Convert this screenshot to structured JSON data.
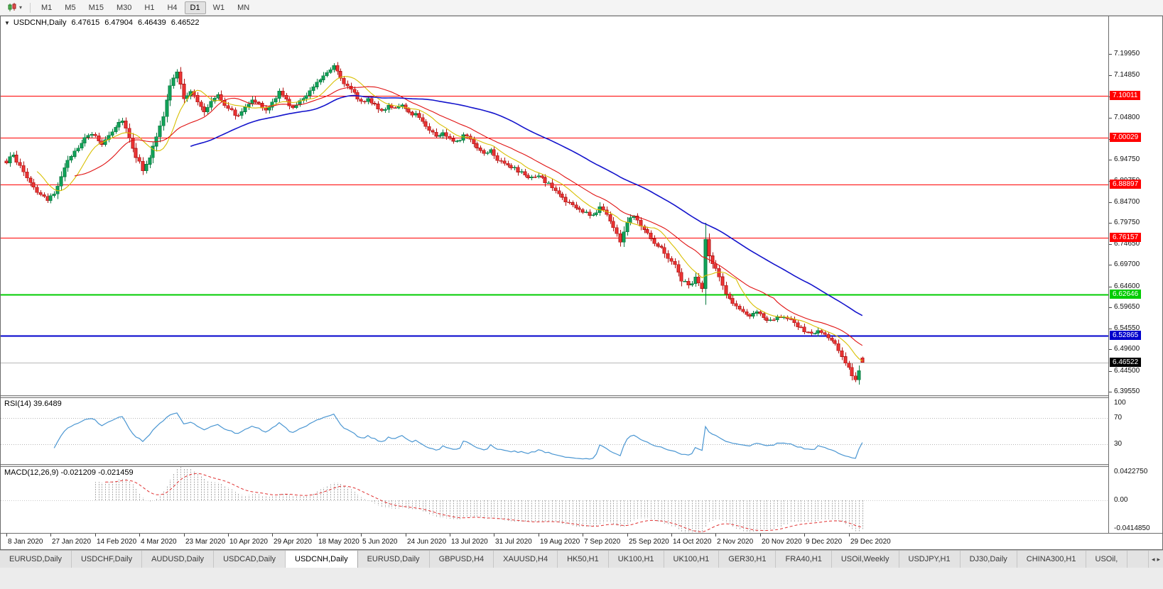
{
  "icons": {
    "collapse": "▼",
    "caret": "▾",
    "scroll_left": "◂",
    "scroll_right": "▸"
  },
  "toolbar": {
    "timeframes": [
      "M1",
      "M5",
      "M15",
      "M30",
      "H1",
      "H4",
      "D1",
      "W1",
      "MN"
    ],
    "active_timeframe": "D1"
  },
  "chart": {
    "symbol_period": "USDCNH,Daily",
    "open": "6.47615",
    "high": "6.47904",
    "low": "6.46439",
    "close": "6.46522"
  },
  "panels": {
    "rsi_label": "RSI(14) 39.6489",
    "macd_label": "MACD(12,26,9) -0.021209 -0.021459"
  },
  "tabs": {
    "items": [
      {
        "label": "EURUSD,Daily",
        "active": false
      },
      {
        "label": "USDCHF,Daily",
        "active": false
      },
      {
        "label": "AUDUSD,Daily",
        "active": false
      },
      {
        "label": "USDCAD,Daily",
        "active": false
      },
      {
        "label": "USDCNH,Daily",
        "active": true
      },
      {
        "label": "EURUSD,Daily",
        "active": false
      },
      {
        "label": "GBPUSD,H4",
        "active": false
      },
      {
        "label": "XAUUSD,H4",
        "active": false
      },
      {
        "label": "HK50,H1",
        "active": false
      },
      {
        "label": "UK100,H1",
        "active": false
      },
      {
        "label": "UK100,H1",
        "active": false
      },
      {
        "label": "GER30,H1",
        "active": false
      },
      {
        "label": "FRA40,H1",
        "active": false
      },
      {
        "label": "USOil,Weekly",
        "active": false
      },
      {
        "label": "USDJPY,H1",
        "active": false
      },
      {
        "label": "DJ30,Daily",
        "active": false
      },
      {
        "label": "CHINA300,H1",
        "active": false
      },
      {
        "label": "USOil,",
        "active": false
      }
    ]
  },
  "chart_data": {
    "type": "candlestick",
    "symbol": "USDCNH",
    "timeframe": "Daily",
    "title": "USDCNH,Daily 6.47615 6.47904 6.46439 6.46522",
    "last_ohlc": [
      6.47615,
      6.47904,
      6.46439,
      6.46522
    ],
    "y_range": [
      6.387,
      7.289
    ],
    "y_tick_labels": [
      "7.19950",
      "7.14850",
      "7.09800",
      "7.04800",
      "6.99750",
      "6.94750",
      "6.89750",
      "6.84700",
      "6.79750",
      "6.74650",
      "6.69700",
      "6.64600",
      "6.59650",
      "6.54550",
      "6.49600",
      "6.44500",
      "6.39550"
    ],
    "x_tick_labels": [
      "8 Jan 2020",
      "27 Jan 2020",
      "14 Feb 2020",
      "4 Mar 2020",
      "23 Mar 2020",
      "10 Apr 2020",
      "29 Apr 2020",
      "18 May 2020",
      "5 Jun 2020",
      "24 Jun 2020",
      "13 Jul 2020",
      "31 Jul 2020",
      "19 Aug 2020",
      "7 Sep 2020",
      "25 Sep 2020",
      "14 Oct 2020",
      "2 Nov 2020",
      "20 Nov 2020",
      "9 Dec 2020",
      "29 Dec 2020"
    ],
    "candles_per_tick": 13,
    "candle_count": 252,
    "price_path_anchors": [
      [
        0,
        6.94
      ],
      [
        2,
        6.962
      ],
      [
        4,
        6.93
      ],
      [
        6,
        6.905
      ],
      [
        9,
        6.872
      ],
      [
        12,
        6.848
      ],
      [
        14,
        6.868
      ],
      [
        16,
        6.91
      ],
      [
        19,
        6.958
      ],
      [
        22,
        6.99
      ],
      [
        25,
        7.01
      ],
      [
        28,
        6.985
      ],
      [
        31,
        7.018
      ],
      [
        34,
        7.045
      ],
      [
        36,
        7.0
      ],
      [
        38,
        6.956
      ],
      [
        40,
        6.925
      ],
      [
        42,
        6.955
      ],
      [
        44,
        7.0
      ],
      [
        46,
        7.052
      ],
      [
        48,
        7.125
      ],
      [
        50,
        7.155
      ],
      [
        52,
        7.095
      ],
      [
        54,
        7.112
      ],
      [
        56,
        7.085
      ],
      [
        58,
        7.06
      ],
      [
        60,
        7.088
      ],
      [
        62,
        7.105
      ],
      [
        64,
        7.08
      ],
      [
        66,
        7.064
      ],
      [
        68,
        7.05
      ],
      [
        70,
        7.074
      ],
      [
        72,
        7.094
      ],
      [
        74,
        7.08
      ],
      [
        76,
        7.062
      ],
      [
        78,
        7.084
      ],
      [
        80,
        7.108
      ],
      [
        82,
        7.09
      ],
      [
        84,
        7.07
      ],
      [
        86,
        7.085
      ],
      [
        88,
        7.104
      ],
      [
        90,
        7.124
      ],
      [
        92,
        7.14
      ],
      [
        94,
        7.158
      ],
      [
        96,
        7.174
      ],
      [
        98,
        7.144
      ],
      [
        100,
        7.12
      ],
      [
        102,
        7.104
      ],
      [
        104,
        7.086
      ],
      [
        106,
        7.094
      ],
      [
        108,
        7.076
      ],
      [
        110,
        7.064
      ],
      [
        112,
        7.078
      ],
      [
        114,
        7.07
      ],
      [
        116,
        7.074
      ],
      [
        118,
        7.06
      ],
      [
        120,
        7.056
      ],
      [
        122,
        7.04
      ],
      [
        124,
        7.02
      ],
      [
        126,
        7.004
      ],
      [
        128,
        7.01
      ],
      [
        130,
        7.0
      ],
      [
        132,
        6.992
      ],
      [
        134,
        7.004
      ],
      [
        136,
        6.998
      ],
      [
        138,
        6.976
      ],
      [
        140,
        6.964
      ],
      [
        142,
        6.972
      ],
      [
        144,
        6.95
      ],
      [
        146,
        6.942
      ],
      [
        148,
        6.93
      ],
      [
        150,
        6.92
      ],
      [
        152,
        6.912
      ],
      [
        154,
        6.904
      ],
      [
        156,
        6.908
      ],
      [
        158,
        6.896
      ],
      [
        160,
        6.882
      ],
      [
        162,
        6.866
      ],
      [
        164,
        6.85
      ],
      [
        166,
        6.838
      ],
      [
        168,
        6.828
      ],
      [
        170,
        6.82
      ],
      [
        172,
        6.814
      ],
      [
        174,
        6.836
      ],
      [
        176,
        6.82
      ],
      [
        178,
        6.786
      ],
      [
        180,
        6.754
      ],
      [
        182,
        6.798
      ],
      [
        184,
        6.816
      ],
      [
        186,
        6.794
      ],
      [
        188,
        6.774
      ],
      [
        190,
        6.752
      ],
      [
        192,
        6.736
      ],
      [
        194,
        6.716
      ],
      [
        196,
        6.696
      ],
      [
        198,
        6.662
      ],
      [
        200,
        6.648
      ],
      [
        202,
        6.666
      ],
      [
        204,
        6.64
      ],
      [
        205,
        6.758
      ],
      [
        206,
        6.716
      ],
      [
        208,
        6.686
      ],
      [
        210,
        6.648
      ],
      [
        212,
        6.616
      ],
      [
        214,
        6.598
      ],
      [
        216,
        6.584
      ],
      [
        218,
        6.576
      ],
      [
        220,
        6.582
      ],
      [
        222,
        6.572
      ],
      [
        224,
        6.566
      ],
      [
        226,
        6.576
      ],
      [
        228,
        6.57
      ],
      [
        230,
        6.564
      ],
      [
        232,
        6.552
      ],
      [
        234,
        6.54
      ],
      [
        236,
        6.532
      ],
      [
        238,
        6.54
      ],
      [
        240,
        6.53
      ],
      [
        242,
        6.516
      ],
      [
        244,
        6.496
      ],
      [
        246,
        6.466
      ],
      [
        248,
        6.436
      ],
      [
        249,
        6.424
      ],
      [
        250,
        6.446
      ],
      [
        251,
        6.465
      ]
    ],
    "horizontal_lines": [
      {
        "price": 7.10011,
        "label": "7.10011",
        "color": "#ff0000",
        "width": 1
      },
      {
        "price": 7.00029,
        "label": "7.00029",
        "color": "#ff0000",
        "width": 1
      },
      {
        "price": 6.88897,
        "label": "6.88897",
        "color": "#ff0000",
        "width": 1
      },
      {
        "price": 6.76157,
        "label": "6.76157",
        "color": "#ff0000",
        "width": 1
      },
      {
        "price": 6.62646,
        "label": "6.62646",
        "color": "#00cc00",
        "width": 2
      },
      {
        "price": 6.52865,
        "label": "6.52865",
        "color": "#0000cc",
        "width": 2
      }
    ],
    "bid_line": {
      "price": 6.46522,
      "label": "6.46522",
      "color": "#b8b8b8",
      "box_color": "#000000"
    },
    "candle_colors": {
      "up": "#10a65a",
      "up_border": "#0a7a40",
      "down": "#f03535",
      "down_border": "#b01515"
    },
    "moving_averages": [
      {
        "period": 10,
        "color": "#d8bf00"
      },
      {
        "period": 21,
        "color": "#e01212"
      },
      {
        "period": 55,
        "color": "#1414cc"
      }
    ],
    "rsi": {
      "period": 14,
      "current": 39.6489,
      "color": "#4a96d2",
      "levels": [
        70,
        30
      ],
      "scale_labels": [
        "100",
        "70",
        "30"
      ]
    },
    "macd": {
      "fast": 12,
      "slow": 26,
      "signal": 9,
      "current": -0.021209,
      "current_signal": -0.021459,
      "y_range": [
        -0.0415,
        0.0423
      ],
      "scale_labels": [
        "0.0422750",
        "0.00",
        "-0.0414850"
      ],
      "histogram_color": "#a8a8a8",
      "signal_color": "#e03030"
    }
  }
}
